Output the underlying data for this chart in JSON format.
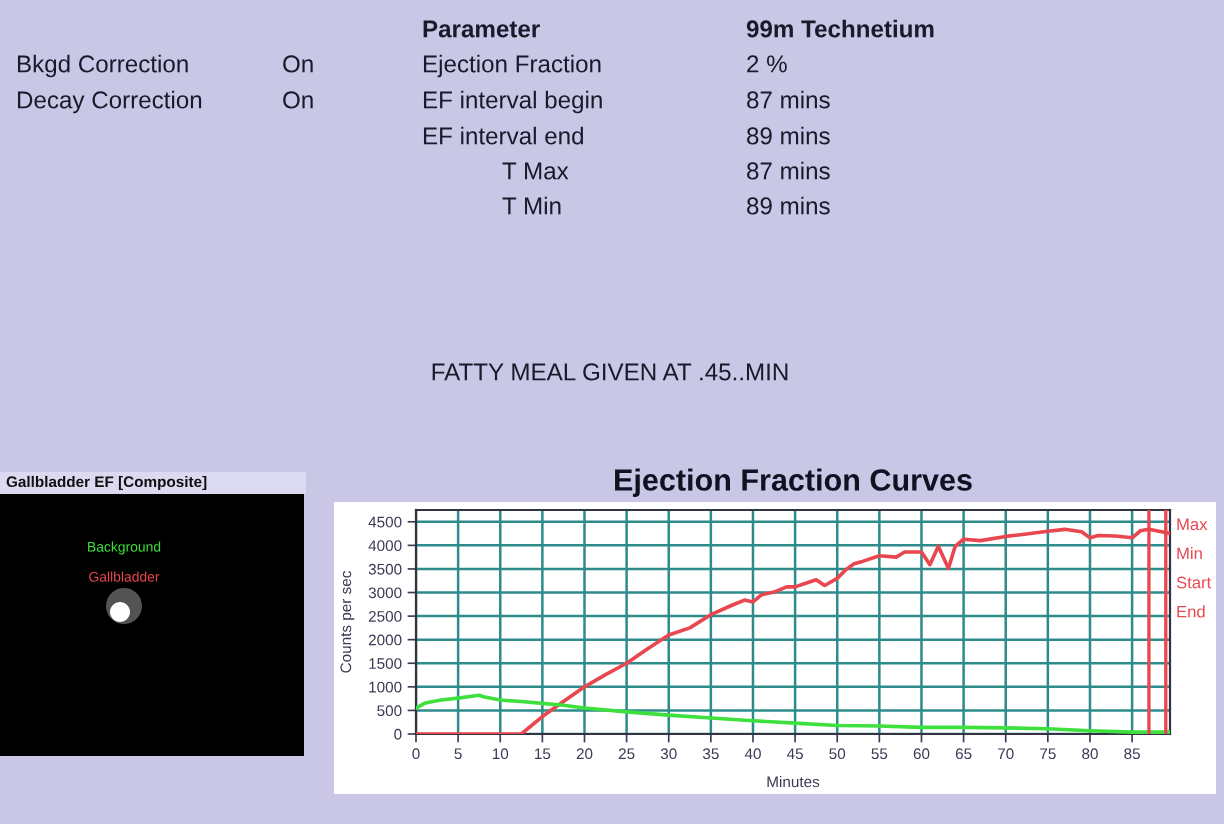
{
  "chart_data": [
    {
      "type": "other",
      "annotations": [
        "Parameter",
        "99m Technetium",
        "Bkgd Correction",
        "On",
        "Ejection Fraction",
        "2 %",
        "Decay Correction",
        "On",
        "EF interval begin",
        "87 mins",
        "EF interval end",
        "89 mins",
        "T Max",
        "87 mins",
        "T Min",
        "89 mins",
        "FATTY MEAL GIVEN AT .45..MIN"
      ]
    },
    {
      "type": "other",
      "title": "Gallbladder EF [Composite]",
      "annotations": [
        "Background",
        "Gallbladder"
      ]
    },
    {
      "type": "line",
      "title": "Ejection Fraction Curves",
      "xlabel": "Minutes",
      "ylabel": "Counts per sec",
      "xlim": [
        0,
        89.5
      ],
      "ylim": [
        0,
        4750
      ],
      "xticks": [
        0,
        5,
        10,
        15,
        20,
        25,
        30,
        35,
        40,
        45,
        50,
        55,
        60,
        65,
        70,
        75,
        80,
        85
      ],
      "yticks": [
        0,
        500,
        1000,
        1500,
        2000,
        2500,
        3000,
        3500,
        4000,
        4500
      ],
      "grid": true,
      "line_style": "solid",
      "series": [
        {
          "color": "#e8474f",
          "x": [
            0,
            12.5,
            15,
            17.5,
            20,
            22.5,
            25,
            27.5,
            30,
            32.5,
            35,
            37.5,
            39,
            40,
            41,
            42.5,
            44,
            45,
            46,
            47.5,
            48.5,
            50,
            51,
            52,
            53,
            55,
            57,
            58,
            60,
            61,
            62,
            63.2,
            64,
            65,
            67,
            70,
            72,
            75,
            77,
            79,
            80,
            81,
            83,
            85,
            86,
            87,
            88.5,
            89.3
          ],
          "values": [
            0,
            0,
            370,
            690,
            1000,
            1260,
            1500,
            1810,
            2100,
            2250,
            2530,
            2730,
            2840,
            2800,
            2950,
            3010,
            3120,
            3120,
            3180,
            3270,
            3150,
            3300,
            3480,
            3610,
            3660,
            3780,
            3750,
            3860,
            3860,
            3590,
            3980,
            3510,
            3980,
            4130,
            4100,
            4190,
            4230,
            4300,
            4340,
            4290,
            4160,
            4210,
            4200,
            4160,
            4310,
            4340,
            4290,
            4260
          ]
        },
        {
          "color": "#3ee03e",
          "x": [
            0,
            1,
            2,
            3,
            5,
            7.5,
            8,
            10,
            12.5,
            15,
            17.5,
            20,
            25,
            30,
            35,
            40,
            45,
            50,
            55,
            60,
            65,
            70,
            75,
            80,
            85,
            89.3
          ],
          "values": [
            550,
            650,
            690,
            720,
            760,
            820,
            790,
            720,
            690,
            650,
            610,
            550,
            470,
            400,
            340,
            280,
            230,
            180,
            170,
            140,
            140,
            130,
            110,
            70,
            40,
            40
          ]
        }
      ],
      "ref_lines": [
        {
          "axis": "x",
          "value": 87,
          "label": "Max",
          "color": "#e8474f"
        },
        {
          "axis": "x",
          "value": 89,
          "label": "Min",
          "color": "#e8474f"
        }
      ],
      "annotations": [
        "Start",
        "End"
      ]
    }
  ]
}
